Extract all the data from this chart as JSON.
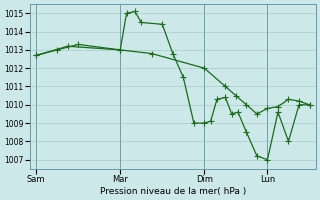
{
  "background_color": "#cce8e8",
  "grid_color": "#aacccc",
  "line_color": "#1a6b1a",
  "xlabel": "Pression niveau de la mer( hPa )",
  "ylim": [
    1006.5,
    1015.5
  ],
  "yticks": [
    1007,
    1008,
    1009,
    1010,
    1011,
    1012,
    1013,
    1014,
    1015
  ],
  "xtick_labels": [
    "Sam",
    "Mar",
    "Dim",
    "Lun"
  ],
  "xtick_positions": [
    0,
    4,
    8,
    11
  ],
  "line1_x": [
    0,
    1,
    2,
    4,
    4.3,
    4.7,
    5,
    6,
    6.5,
    7,
    7.5,
    8,
    8.3,
    8.6,
    9,
    9.3,
    9.6,
    10,
    10.5,
    11,
    11.5,
    12,
    12.5,
    13
  ],
  "line1_y": [
    1012.7,
    1013.0,
    1013.3,
    1013.0,
    1015.0,
    1015.1,
    1014.5,
    1014.4,
    1012.8,
    1011.5,
    1009.0,
    1009.0,
    1009.1,
    1010.3,
    1010.4,
    1009.5,
    1009.6,
    1008.5,
    1007.2,
    1007.0,
    1009.6,
    1008.0,
    1010.0,
    1010.0
  ],
  "line2_x": [
    0,
    1.5,
    4,
    5.5,
    8,
    9,
    9.5,
    10,
    10.5,
    11,
    11.5,
    12,
    12.5,
    13
  ],
  "line2_y": [
    1012.7,
    1013.2,
    1013.0,
    1012.8,
    1012.0,
    1011.0,
    1010.5,
    1010.0,
    1009.5,
    1009.8,
    1009.9,
    1010.3,
    1010.2,
    1010.0
  ],
  "vline_positions": [
    0,
    4,
    8,
    11
  ],
  "figsize": [
    3.2,
    2.0
  ],
  "dpi": 100
}
